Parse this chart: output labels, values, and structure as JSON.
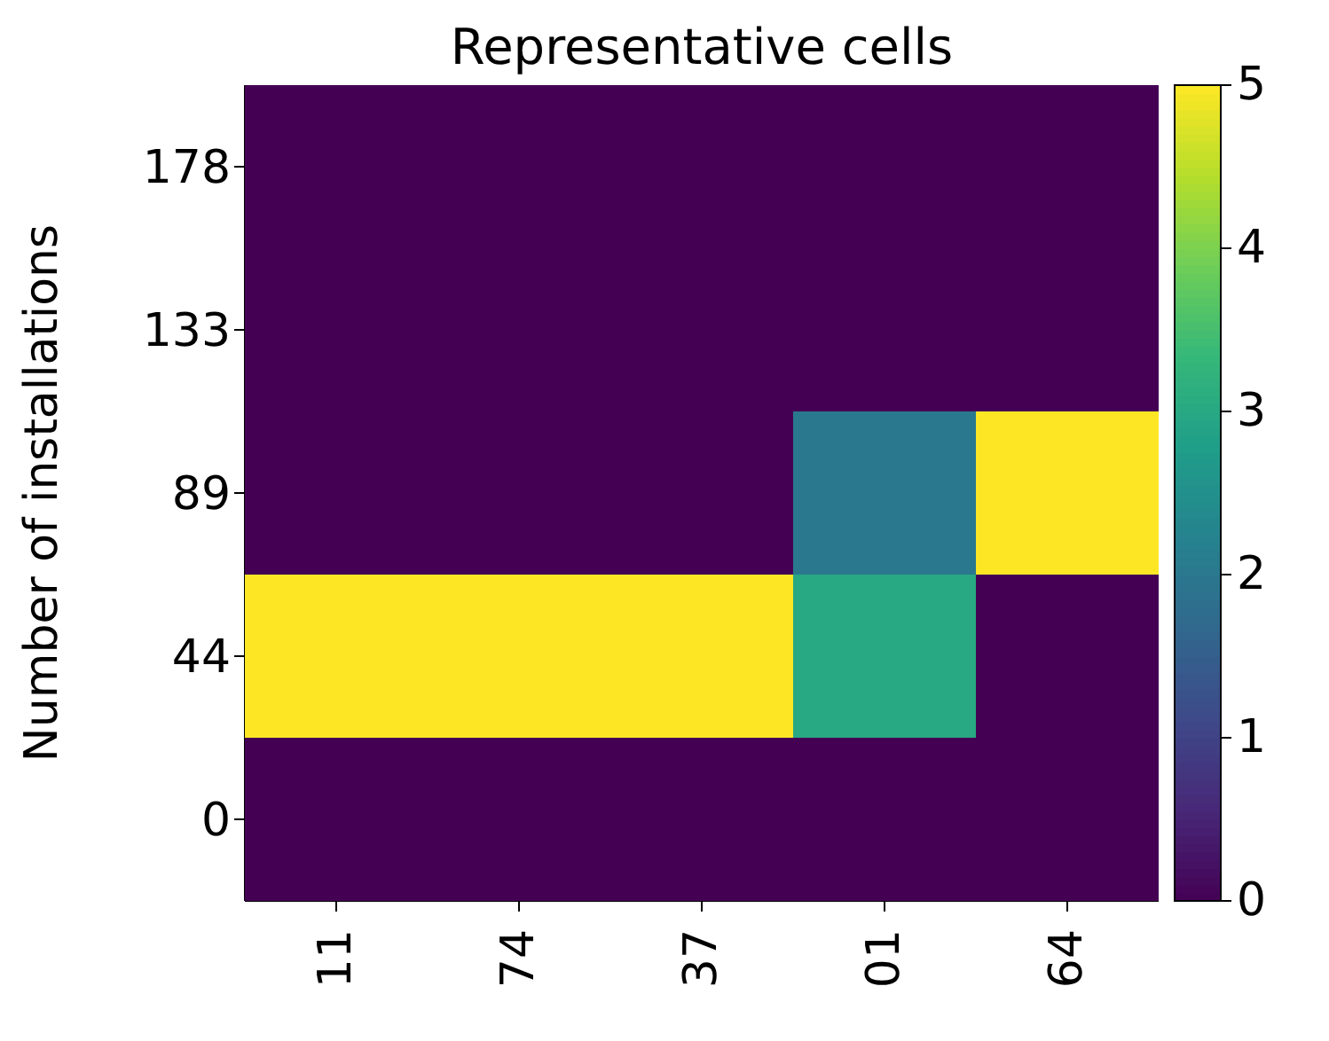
{
  "chart_data": {
    "type": "heatmap",
    "title": "Representative cells",
    "ylabel": "Number of installations",
    "categories": [
      "11",
      "74",
      "37",
      "01",
      "64"
    ],
    "y_categories": [
      "178",
      "133",
      "89",
      "44",
      "0"
    ],
    "cells": [
      [
        0,
        0,
        0,
        0,
        0
      ],
      [
        0,
        0,
        0,
        0,
        0
      ],
      [
        0,
        0,
        0,
        2,
        5
      ],
      [
        5,
        5,
        5,
        3,
        0
      ],
      [
        0,
        0,
        0,
        0,
        0
      ]
    ],
    "clim": [
      0,
      5
    ],
    "cticks": [
      0,
      1,
      2,
      3,
      4,
      5
    ]
  }
}
